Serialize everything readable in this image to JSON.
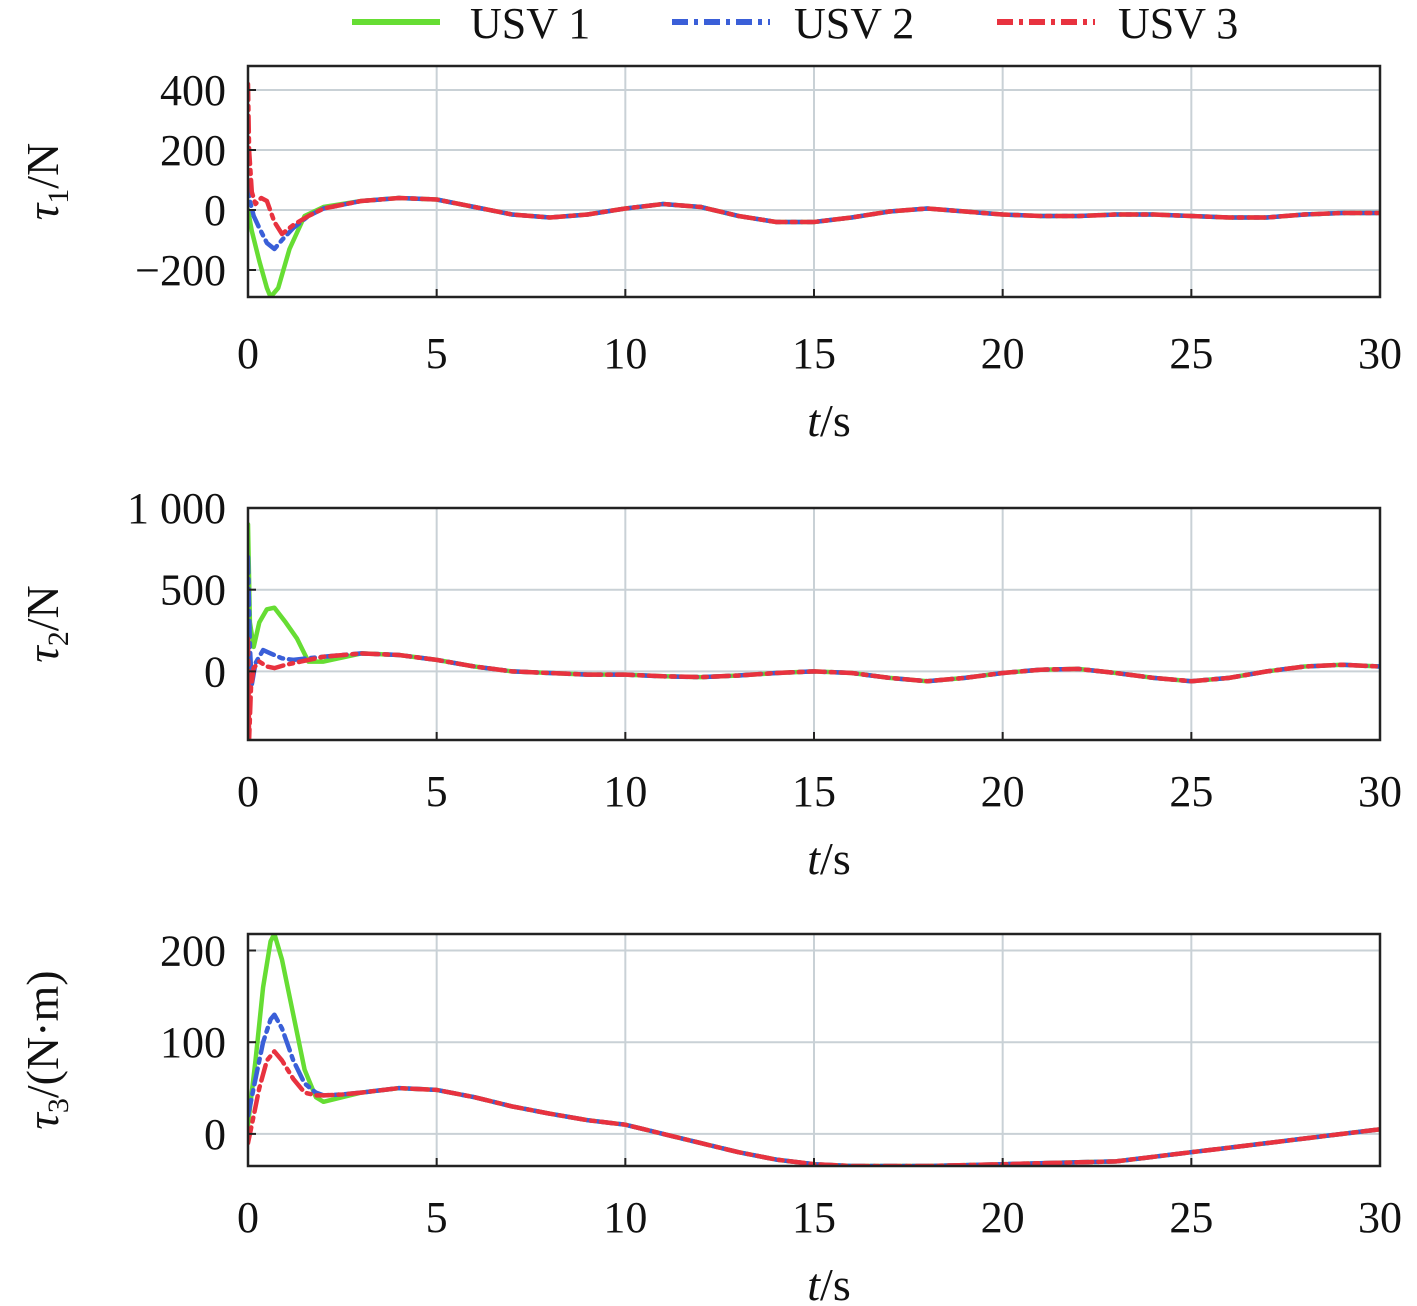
{
  "legend": {
    "items": [
      {
        "name": "USV 1",
        "color": "#66dd33",
        "style": "solid"
      },
      {
        "name": "USV 2",
        "color": "#3a5fd8",
        "style": "dashdot"
      },
      {
        "name": "USV 3",
        "color": "#e8323f",
        "style": "dashdot"
      }
    ]
  },
  "chart_data": [
    {
      "type": "line",
      "ylabel_symbol": "τ",
      "ylabel_sub": "1",
      "ylabel_unit": "/N",
      "xlabel_var": "t",
      "xlabel_unit": "/s",
      "xlim": [
        0,
        30
      ],
      "ylim": [
        -290,
        480
      ],
      "xticks": [
        0,
        5,
        10,
        15,
        20,
        25,
        30
      ],
      "yticks": [
        -200,
        0,
        200,
        400
      ],
      "ytick_labels": [
        "−200",
        "0",
        "200",
        "400"
      ],
      "grid": true,
      "series": [
        {
          "name": "USV 1",
          "x": [
            0,
            0.1,
            0.3,
            0.5,
            0.6,
            0.8,
            1.1,
            1.5,
            2,
            3,
            4,
            5,
            6,
            7,
            8,
            9,
            10,
            11,
            12,
            13,
            14,
            15,
            16,
            17,
            18,
            19,
            20,
            21,
            22,
            23,
            24,
            25,
            26,
            27,
            28,
            29,
            30
          ],
          "y": [
            0,
            -70,
            -170,
            -260,
            -290,
            -260,
            -130,
            -20,
            10,
            30,
            40,
            35,
            10,
            -15,
            -25,
            -15,
            5,
            20,
            10,
            -20,
            -40,
            -40,
            -25,
            -5,
            5,
            -5,
            -15,
            -20,
            -20,
            -15,
            -15,
            -20,
            -25,
            -25,
            -15,
            -10,
            -10
          ]
        },
        {
          "name": "USV 2",
          "x": [
            0,
            0.05,
            0.15,
            0.3,
            0.5,
            0.7,
            0.9,
            1.2,
            1.6,
            2,
            3,
            4,
            5,
            6,
            7,
            8,
            9,
            10,
            11,
            12,
            13,
            14,
            15,
            16,
            17,
            18,
            19,
            20,
            21,
            22,
            23,
            24,
            25,
            26,
            27,
            28,
            29,
            30
          ],
          "y": [
            100,
            30,
            -20,
            -60,
            -110,
            -130,
            -100,
            -60,
            -20,
            5,
            30,
            40,
            35,
            10,
            -15,
            -25,
            -15,
            5,
            20,
            10,
            -20,
            -40,
            -40,
            -25,
            -5,
            5,
            -5,
            -15,
            -20,
            -20,
            -15,
            -15,
            -20,
            -25,
            -25,
            -15,
            -10,
            -10
          ]
        },
        {
          "name": "USV 3",
          "x": [
            0,
            0.03,
            0.1,
            0.2,
            0.35,
            0.5,
            0.7,
            0.9,
            1.2,
            1.6,
            2,
            3,
            4,
            5,
            6,
            7,
            8,
            9,
            10,
            11,
            12,
            13,
            14,
            15,
            16,
            17,
            18,
            19,
            20,
            21,
            22,
            23,
            24,
            25,
            26,
            27,
            28,
            29,
            30
          ],
          "y": [
            420,
            200,
            60,
            20,
            40,
            30,
            -40,
            -80,
            -50,
            -20,
            5,
            30,
            40,
            35,
            10,
            -15,
            -25,
            -15,
            5,
            20,
            10,
            -20,
            -40,
            -40,
            -25,
            -5,
            5,
            -5,
            -15,
            -20,
            -20,
            -15,
            -15,
            -20,
            -25,
            -25,
            -15,
            -10,
            -10
          ]
        }
      ]
    },
    {
      "type": "line",
      "ylabel_symbol": "τ",
      "ylabel_sub": "2",
      "ylabel_unit": "/N",
      "xlabel_var": "t",
      "xlabel_unit": "/s",
      "xlim": [
        0,
        30
      ],
      "ylim": [
        -420,
        1000
      ],
      "xticks": [
        0,
        5,
        10,
        15,
        20,
        25,
        30
      ],
      "yticks": [
        0,
        500,
        1000
      ],
      "ytick_labels": [
        "0",
        "500",
        "1 000"
      ],
      "grid": true,
      "series": [
        {
          "name": "USV 1",
          "x": [
            0,
            0.05,
            0.15,
            0.3,
            0.5,
            0.7,
            1.0,
            1.3,
            1.6,
            2,
            3,
            4,
            5,
            6,
            7,
            8,
            9,
            10,
            11,
            12,
            13,
            14,
            15,
            16,
            17,
            18,
            19,
            20,
            21,
            22,
            23,
            24,
            25,
            26,
            27,
            28,
            29,
            30
          ],
          "y": [
            900,
            300,
            150,
            300,
            380,
            390,
            300,
            200,
            60,
            60,
            110,
            100,
            70,
            30,
            0,
            -10,
            -20,
            -20,
            -30,
            -35,
            -25,
            -10,
            0,
            -10,
            -40,
            -60,
            -40,
            -10,
            10,
            15,
            -10,
            -40,
            -60,
            -40,
            0,
            30,
            40,
            30
          ]
        },
        {
          "name": "USV 2",
          "x": [
            0,
            0.05,
            0.1,
            0.2,
            0.4,
            0.6,
            0.9,
            1.2,
            1.6,
            2,
            3,
            4,
            5,
            6,
            7,
            8,
            9,
            10,
            11,
            12,
            13,
            14,
            15,
            16,
            17,
            18,
            19,
            20,
            21,
            22,
            23,
            24,
            25,
            26,
            27,
            28,
            29,
            30
          ],
          "y": [
            700,
            150,
            -80,
            50,
            130,
            110,
            80,
            70,
            80,
            90,
            110,
            100,
            70,
            30,
            0,
            -10,
            -20,
            -20,
            -30,
            -35,
            -25,
            -10,
            0,
            -10,
            -40,
            -60,
            -40,
            -10,
            10,
            15,
            -10,
            -40,
            -60,
            -40,
            0,
            30,
            40,
            30
          ]
        },
        {
          "name": "USV 3",
          "x": [
            0,
            0.03,
            0.08,
            0.15,
            0.3,
            0.5,
            0.7,
            1.0,
            1.4,
            2,
            3,
            4,
            5,
            6,
            7,
            8,
            9,
            10,
            11,
            12,
            13,
            14,
            15,
            16,
            17,
            18,
            19,
            20,
            21,
            22,
            23,
            24,
            25,
            26,
            27,
            28,
            29,
            30
          ],
          "y": [
            200,
            -420,
            -100,
            20,
            60,
            30,
            20,
            40,
            60,
            90,
            110,
            100,
            70,
            30,
            0,
            -10,
            -20,
            -20,
            -30,
            -35,
            -25,
            -10,
            0,
            -10,
            -40,
            -60,
            -40,
            -10,
            10,
            15,
            -10,
            -40,
            -60,
            -40,
            0,
            30,
            40,
            30
          ]
        }
      ]
    },
    {
      "type": "line",
      "ylabel_symbol": "τ",
      "ylabel_sub": "3",
      "ylabel_unit": "/(N·m)",
      "xlabel_var": "t",
      "xlabel_unit": "/s",
      "xlim": [
        0,
        30
      ],
      "ylim": [
        -35,
        218
      ],
      "xticks": [
        0,
        5,
        10,
        15,
        20,
        25,
        30
      ],
      "yticks": [
        0,
        100,
        200
      ],
      "ytick_labels": [
        "0",
        "100",
        "200"
      ],
      "grid": true,
      "series": [
        {
          "name": "USV 1",
          "x": [
            0,
            0.2,
            0.4,
            0.6,
            0.7,
            0.9,
            1.2,
            1.5,
            1.8,
            2,
            2.5,
            3,
            4,
            5,
            6,
            7,
            8,
            9,
            10,
            11,
            12,
            13,
            14,
            15,
            16,
            17,
            18,
            19,
            20,
            21,
            22,
            23,
            24,
            25,
            26,
            27,
            28,
            29,
            30
          ],
          "y": [
            10,
            80,
            160,
            210,
            218,
            190,
            130,
            70,
            40,
            35,
            40,
            45,
            50,
            48,
            40,
            30,
            22,
            15,
            10,
            0,
            -10,
            -20,
            -28,
            -33,
            -35,
            -35,
            -35,
            -34,
            -33,
            -32,
            -31,
            -30,
            -25,
            -20,
            -15,
            -10,
            -5,
            0,
            5
          ]
        },
        {
          "name": "USV 2",
          "x": [
            0,
            0.2,
            0.4,
            0.6,
            0.7,
            0.9,
            1.2,
            1.5,
            1.8,
            2,
            2.5,
            3,
            4,
            5,
            6,
            7,
            8,
            9,
            10,
            11,
            12,
            13,
            14,
            15,
            16,
            17,
            18,
            19,
            20,
            21,
            22,
            23,
            24,
            25,
            26,
            27,
            28,
            29,
            30
          ],
          "y": [
            20,
            60,
            100,
            125,
            130,
            115,
            80,
            55,
            45,
            42,
            43,
            45,
            50,
            48,
            40,
            30,
            22,
            15,
            10,
            0,
            -10,
            -20,
            -28,
            -33,
            -35,
            -35,
            -35,
            -34,
            -33,
            -32,
            -31,
            -30,
            -25,
            -20,
            -15,
            -10,
            -5,
            0,
            5
          ]
        },
        {
          "name": "USV 3",
          "x": [
            0,
            0.15,
            0.3,
            0.5,
            0.7,
            0.9,
            1.2,
            1.5,
            1.8,
            2,
            2.5,
            3,
            4,
            5,
            6,
            7,
            8,
            9,
            10,
            11,
            12,
            13,
            14,
            15,
            16,
            17,
            18,
            19,
            20,
            21,
            22,
            23,
            24,
            25,
            26,
            27,
            28,
            29,
            30
          ],
          "y": [
            -10,
            20,
            50,
            80,
            90,
            80,
            60,
            45,
            42,
            42,
            43,
            45,
            50,
            48,
            40,
            30,
            22,
            15,
            10,
            0,
            -10,
            -20,
            -28,
            -33,
            -35,
            -35,
            -35,
            -34,
            -33,
            -32,
            -31,
            -30,
            -25,
            -20,
            -15,
            -10,
            -5,
            0,
            5
          ]
        }
      ]
    }
  ]
}
